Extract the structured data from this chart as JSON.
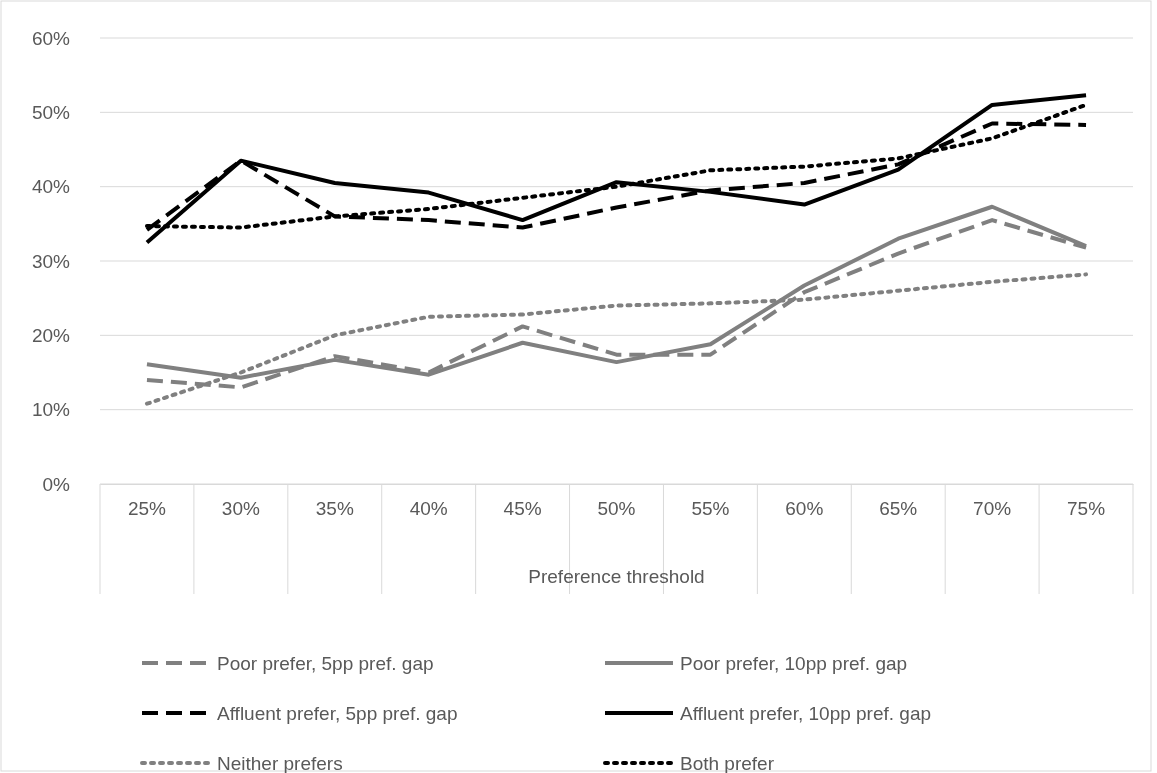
{
  "chart_data": {
    "type": "line",
    "xlabel": "Preference threshold",
    "categories": [
      "25%",
      "30%",
      "35%",
      "40%",
      "45%",
      "50%",
      "55%",
      "60%",
      "65%",
      "70%",
      "75%"
    ],
    "ylim": [
      0,
      60
    ],
    "yticks": [
      {
        "value": 0,
        "label": "0%"
      },
      {
        "value": 10,
        "label": "10%"
      },
      {
        "value": 20,
        "label": "20%"
      },
      {
        "value": 30,
        "label": "30%"
      },
      {
        "value": 40,
        "label": "40%"
      },
      {
        "value": 50,
        "label": "50%"
      },
      {
        "value": 60,
        "label": "60%"
      }
    ],
    "grid": "y",
    "legend": "bottom",
    "marker": "none",
    "series": [
      {
        "name": "Poor prefer, 5pp pref. gap",
        "color": "#808080",
        "line_style": "dashed",
        "values": [
          14,
          13,
          17.2,
          15,
          21.2,
          17.4,
          17.4,
          25.8,
          31,
          35.5,
          31.8
        ]
      },
      {
        "name": "Poor prefer, 10pp pref. gap",
        "color": "#808080",
        "line_style": "solid",
        "values": [
          16.1,
          14.3,
          16.7,
          14.7,
          19,
          16.4,
          18.8,
          26.7,
          33,
          37.3,
          32
        ]
      },
      {
        "name": "Affluent prefer, 5pp pref. gap",
        "color": "#000000",
        "line_style": "dashed",
        "values": [
          34.2,
          43.5,
          36,
          35.5,
          34.5,
          37.2,
          39.5,
          40.5,
          43,
          48.5,
          48.3
        ]
      },
      {
        "name": "Affluent prefer, 10pp pref. gap",
        "color": "#000000",
        "line_style": "solid",
        "values": [
          32.5,
          43.5,
          40.5,
          39.2,
          35.5,
          40.6,
          39.3,
          37.6,
          42.3,
          51,
          52.3
        ]
      },
      {
        "name": "Neither prefers",
        "color": "#808080",
        "line_style": "dotted",
        "values": [
          10.8,
          15,
          20,
          22.5,
          22.8,
          24,
          24.3,
          24.8,
          26,
          27.2,
          28.2
        ]
      },
      {
        "name": "Both prefer",
        "color": "#000000",
        "line_style": "dotted",
        "values": [
          34.7,
          34.5,
          36,
          37,
          38.5,
          40,
          42.2,
          42.7,
          43.8,
          46.5,
          51
        ]
      }
    ]
  }
}
